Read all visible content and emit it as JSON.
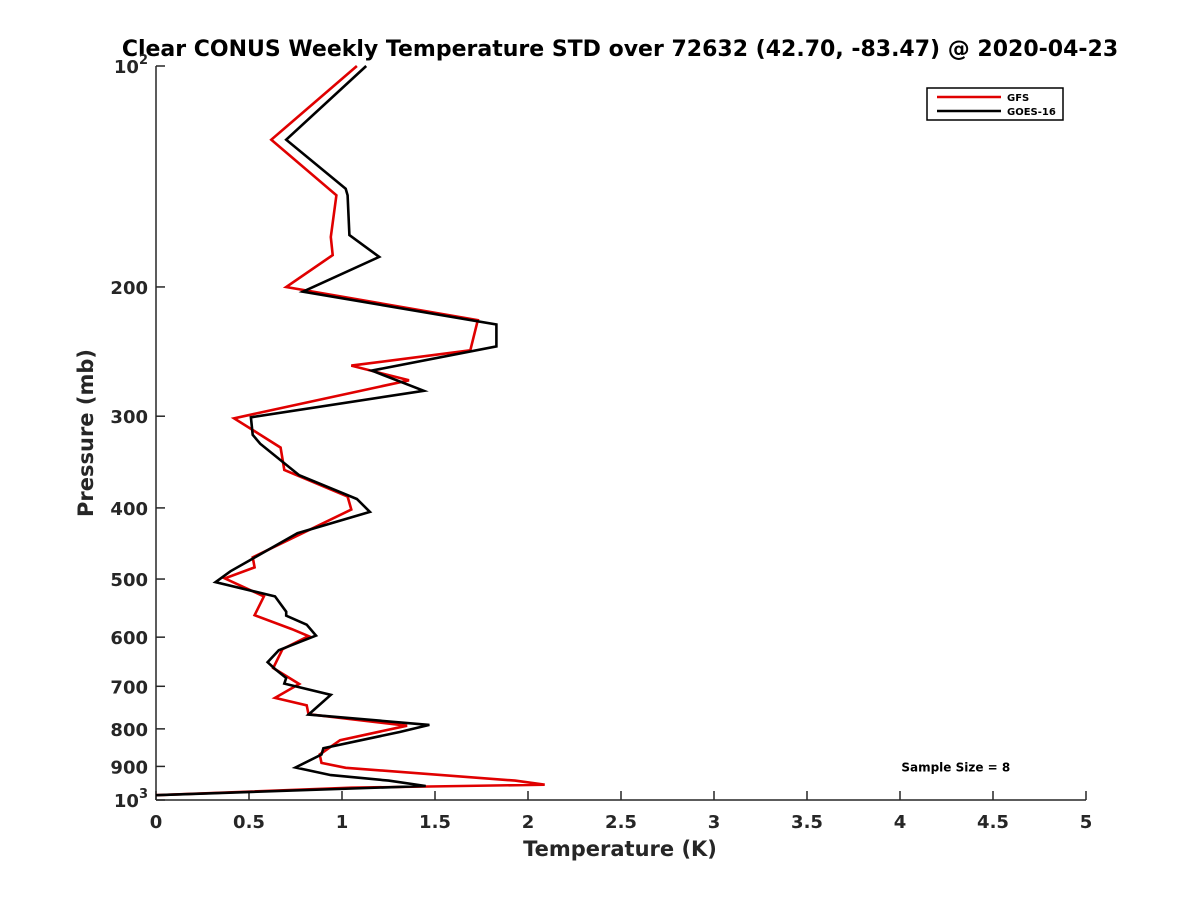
{
  "chart_data": {
    "type": "line",
    "title": "Clear CONUS Weekly Temperature STD over 72632 (42.70, -83.47) @ 2020-04-23",
    "xlabel": "Temperature (K)",
    "ylabel": "Pressure (mb)",
    "xlim": [
      0,
      5
    ],
    "ylim": [
      100,
      1000
    ],
    "y_scale": "log",
    "y_reversed": true,
    "grid": false,
    "legend_position": "top-right",
    "x_ticks": [
      "0",
      "0.5",
      "1",
      "1.5",
      "2",
      "2.5",
      "3",
      "3.5",
      "4",
      "4.5",
      "5"
    ],
    "y_ticks": [
      {
        "value": 100,
        "label": "10",
        "sup": "2"
      },
      {
        "value": 200,
        "label": "200",
        "sup": ""
      },
      {
        "value": 300,
        "label": "300",
        "sup": ""
      },
      {
        "value": 400,
        "label": "400",
        "sup": ""
      },
      {
        "value": 500,
        "label": "500",
        "sup": ""
      },
      {
        "value": 600,
        "label": "600",
        "sup": ""
      },
      {
        "value": 700,
        "label": "700",
        "sup": ""
      },
      {
        "value": 800,
        "label": "800",
        "sup": ""
      },
      {
        "value": 900,
        "label": "900",
        "sup": ""
      },
      {
        "value": 1000,
        "label": "10",
        "sup": "3"
      }
    ],
    "series": [
      {
        "name": "GFS",
        "color": "#e00000",
        "points": [
          [
            1.08,
            100
          ],
          [
            0.62,
            126
          ],
          [
            0.97,
            150
          ],
          [
            0.94,
            171
          ],
          [
            0.95,
            181
          ],
          [
            0.7,
            200
          ],
          [
            1.73,
            222
          ],
          [
            1.69,
            244
          ],
          [
            1.05,
            256
          ],
          [
            1.36,
            268
          ],
          [
            0.42,
            302
          ],
          [
            0.67,
            331
          ],
          [
            0.69,
            355
          ],
          [
            1.03,
            386
          ],
          [
            1.05,
            402
          ],
          [
            0.52,
            467
          ],
          [
            0.53,
            482
          ],
          [
            0.37,
            499
          ],
          [
            0.58,
            528
          ],
          [
            0.53,
            560
          ],
          [
            0.73,
            585
          ],
          [
            0.82,
            598
          ],
          [
            0.68,
            623
          ],
          [
            0.63,
            661
          ],
          [
            0.77,
            695
          ],
          [
            0.64,
            726
          ],
          [
            0.81,
            743
          ],
          [
            0.82,
            764
          ],
          [
            1.35,
            792
          ],
          [
            0.99,
            829
          ],
          [
            0.88,
            867
          ],
          [
            0.89,
            890
          ],
          [
            1.02,
            904
          ],
          [
            1.93,
            941
          ],
          [
            2.09,
            953
          ],
          [
            1.05,
            962
          ],
          [
            0.0,
            985
          ]
        ]
      },
      {
        "name": "GOES-16",
        "color": "#000000",
        "points": [
          [
            1.13,
            100
          ],
          [
            0.7,
            126
          ],
          [
            1.02,
            147
          ],
          [
            1.03,
            150
          ],
          [
            1.04,
            170
          ],
          [
            1.2,
            182
          ],
          [
            0.79,
            203
          ],
          [
            1.83,
            225
          ],
          [
            1.83,
            241
          ],
          [
            1.16,
            260
          ],
          [
            1.44,
            277
          ],
          [
            0.51,
            301
          ],
          [
            0.52,
            318
          ],
          [
            0.56,
            327
          ],
          [
            0.77,
            361
          ],
          [
            1.08,
            389
          ],
          [
            1.15,
            405
          ],
          [
            0.76,
            433
          ],
          [
            0.5,
            472
          ],
          [
            0.4,
            488
          ],
          [
            0.32,
            505
          ],
          [
            0.64,
            528
          ],
          [
            0.7,
            554
          ],
          [
            0.7,
            561
          ],
          [
            0.81,
            577
          ],
          [
            0.86,
            597
          ],
          [
            0.66,
            625
          ],
          [
            0.6,
            649
          ],
          [
            0.64,
            663
          ],
          [
            0.7,
            682
          ],
          [
            0.69,
            694
          ],
          [
            0.94,
            719
          ],
          [
            0.82,
            765
          ],
          [
            1.47,
            790
          ],
          [
            1.31,
            808
          ],
          [
            0.9,
            850
          ],
          [
            0.89,
            867
          ],
          [
            0.75,
            903
          ],
          [
            0.94,
            925
          ],
          [
            1.25,
            941
          ],
          [
            1.45,
            957
          ],
          [
            0.0,
            985
          ]
        ]
      }
    ],
    "annotations": [
      {
        "text": "Sample Size = 8",
        "x": 4.3,
        "y": 903
      }
    ]
  }
}
